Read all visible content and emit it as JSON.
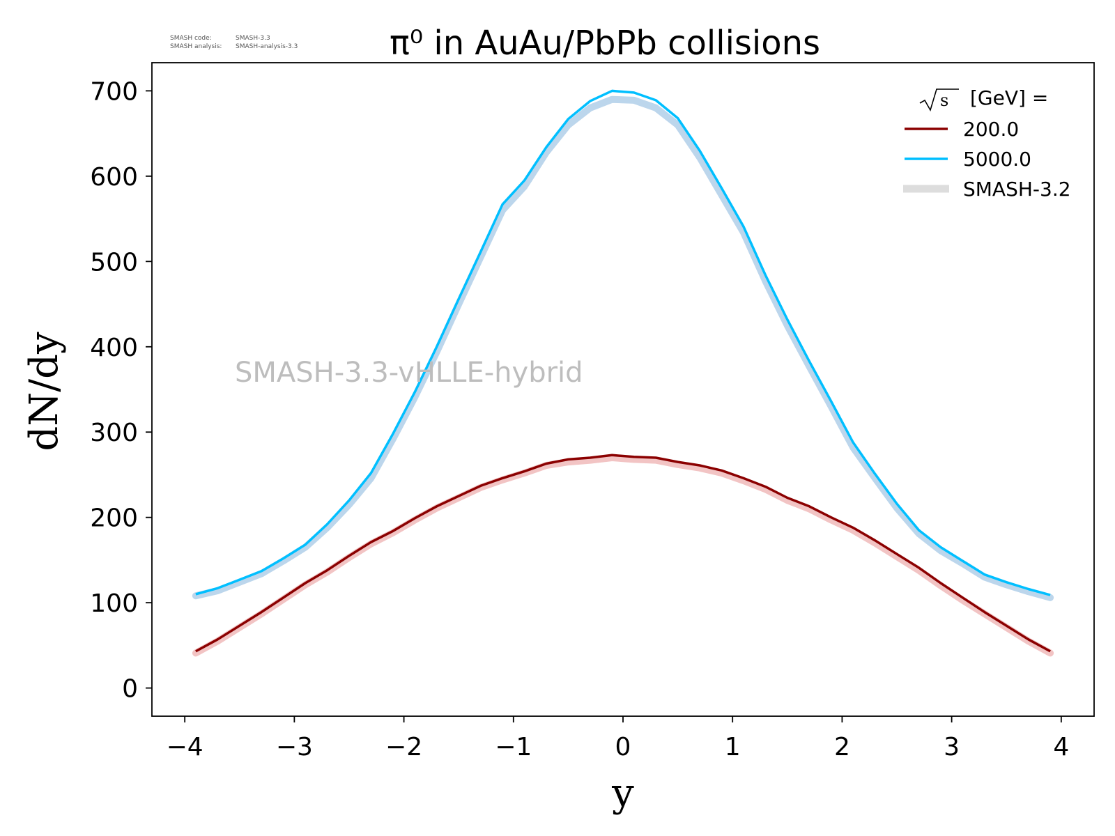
{
  "meta": {
    "code_label": "SMASH code:",
    "code_value": "SMASH-3.3",
    "analysis_label": "SMASH analysis:",
    "analysis_value": "SMASH-analysis-3.3"
  },
  "watermark": "SMASH-3.3-vHLLE-hybrid",
  "chart_data": {
    "type": "line",
    "title": "π⁰ in AuAu/PbPb collisions",
    "xlabel": "y",
    "ylabel": "dN/dy",
    "xlim": [
      -4.3,
      4.3
    ],
    "ylim": [
      -33,
      733
    ],
    "xticks": [
      -4,
      -3,
      -2,
      -1,
      0,
      1,
      2,
      3,
      4
    ],
    "xtick_labels": [
      "−4",
      "−3",
      "−2",
      "−1",
      "0",
      "1",
      "2",
      "3",
      "4"
    ],
    "yticks": [
      0,
      100,
      200,
      300,
      400,
      500,
      600,
      700
    ],
    "ytick_labels": [
      "0",
      "100",
      "200",
      "300",
      "400",
      "500",
      "600",
      "700"
    ],
    "grid": false,
    "legend": {
      "placement": "top-right",
      "title_prefix": "s",
      "title_suffix": "[GeV] ="
    },
    "x": [
      -3.9,
      -3.7,
      -3.5,
      -3.3,
      -3.1,
      -2.9,
      -2.7,
      -2.5,
      -2.3,
      -2.1,
      -1.9,
      -1.7,
      -1.5,
      -1.3,
      -1.1,
      -0.9,
      -0.7,
      -0.5,
      -0.3,
      -0.1,
      0.1,
      0.3,
      0.5,
      0.7,
      0.9,
      1.1,
      1.3,
      1.5,
      1.7,
      1.9,
      2.1,
      2.3,
      2.5,
      2.7,
      2.9,
      3.1,
      3.3,
      3.5,
      3.7,
      3.9
    ],
    "series": [
      {
        "name": "200.0",
        "color": "#8b0000",
        "values": [
          43,
          57,
          73,
          89,
          106,
          123,
          138,
          155,
          171,
          184,
          199,
          213,
          225,
          237,
          246,
          254,
          263,
          268,
          270,
          273,
          271,
          270,
          265,
          261,
          255,
          246,
          236,
          223,
          213,
          200,
          188,
          173,
          157,
          141,
          123,
          106,
          89,
          73,
          57,
          43
        ]
      },
      {
        "name": "5000.0",
        "color": "#00bfff",
        "values": [
          110,
          117,
          127,
          137,
          152,
          168,
          192,
          220,
          252,
          298,
          347,
          400,
          456,
          511,
          567,
          595,
          634,
          667,
          688,
          700,
          698,
          689,
          668,
          630,
          586,
          541,
          484,
          432,
          383,
          336,
          288,
          251,
          216,
          185,
          165,
          149,
          133,
          124,
          116,
          109
        ]
      }
    ],
    "reference": {
      "name": "SMASH-3.2",
      "color": "#dddddd",
      "bands": [
        {
          "color": "#f2c4c4",
          "values": [
            41,
            55,
            71,
            87,
            104,
            121,
            136,
            153,
            169,
            182,
            197,
            211,
            223,
            235,
            244,
            252,
            261,
            265,
            267,
            270,
            268,
            267,
            262,
            258,
            252,
            243,
            233,
            220,
            210,
            197,
            185,
            170,
            154,
            138,
            120,
            103,
            87,
            71,
            55,
            41
          ]
        },
        {
          "color": "#bcd6ec",
          "values": [
            108,
            114,
            124,
            134,
            149,
            165,
            188,
            215,
            246,
            292,
            341,
            394,
            450,
            505,
            560,
            588,
            628,
            660,
            680,
            690,
            689,
            680,
            660,
            622,
            578,
            534,
            477,
            425,
            377,
            330,
            282,
            246,
            211,
            181,
            161,
            146,
            130,
            121,
            113,
            106
          ]
        }
      ]
    }
  }
}
